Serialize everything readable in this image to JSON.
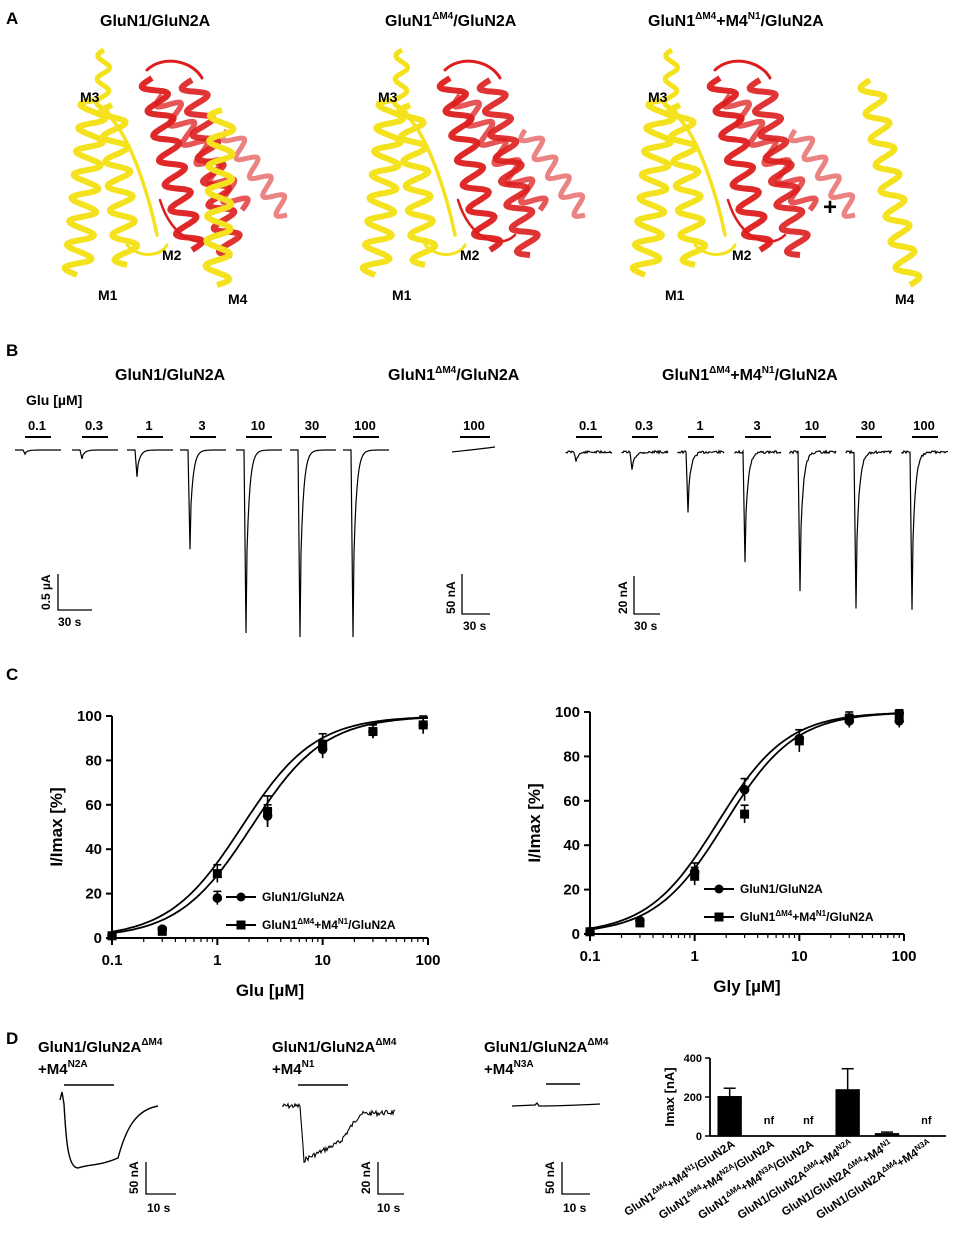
{
  "panelA": {
    "letter": "A",
    "titles": [
      {
        "main": "GluN1/GluN2A",
        "sup1": "",
        "mid": "",
        "sup2": "",
        "tail": ""
      },
      {
        "main": "GluN1",
        "sup1": "ΔM4",
        "mid": "/GluN2A",
        "sup2": "",
        "tail": ""
      },
      {
        "main": "GluN1",
        "sup1": "ΔM4",
        "mid": "+M4",
        "sup2": "N1",
        "tail": "/GluN2A"
      }
    ],
    "labels": {
      "m1": "M1",
      "m2": "M2",
      "m3": "M3",
      "m4": "M4",
      "plus": "+"
    },
    "colors": {
      "glun1": "#f4e21f",
      "glun2a": "#dd1e1e"
    }
  },
  "panelB": {
    "letter": "B",
    "titles": [
      {
        "main": "GluN1/GluN2A",
        "sup1": "",
        "mid": "",
        "sup2": "",
        "tail": ""
      },
      {
        "main": "GluN1",
        "sup1": "ΔM4",
        "mid": "/GluN2A",
        "sup2": "",
        "tail": ""
      },
      {
        "main": "GluN1",
        "sup1": "ΔM4",
        "mid": "+M4",
        "sup2": "N1",
        "tail": "/GluN2A"
      }
    ],
    "glu_label": "Glu [µM]",
    "wt_concs": [
      "0.1",
      "0.3",
      "1",
      "3",
      "10",
      "30",
      "100"
    ],
    "dm4_concs": [
      "100"
    ],
    "rescue_concs": [
      "0.1",
      "0.3",
      "1",
      "3",
      "10",
      "30",
      "100"
    ],
    "wt_peaks_uA": [
      0.05,
      0.11,
      0.33,
      1.22,
      2.25,
      2.3,
      2.3
    ],
    "rescue_peaks_nA": [
      4,
      8,
      26,
      48,
      60,
      68,
      69
    ],
    "scale1": {
      "y": "0.5 µA",
      "x": "30 s"
    },
    "scale2": {
      "y": "50 nA",
      "x": "30 s"
    },
    "scale3": {
      "y": "20 nA",
      "x": "30 s"
    }
  },
  "panelC": {
    "letter": "C",
    "legend": {
      "wt": "GluN1/GluN2A",
      "rescue_main": "GluN1",
      "rescue_sup1": "ΔM4",
      "rescue_mid": "+M4",
      "rescue_sup2": "N1",
      "rescue_tail": "/GluN2A"
    },
    "chart_data": [
      {
        "type": "scatter",
        "xlabel": "Glu [µM]",
        "ylabel": "I/Imax [%]",
        "xscale": "log",
        "xlim": [
          0.1,
          100
        ],
        "ylim": [
          0,
          100
        ],
        "xticks": [
          "0.1",
          "1",
          "10",
          "100"
        ],
        "yticks": [
          "0",
          "20",
          "40",
          "60",
          "80",
          "100"
        ],
        "legend_position": "bottom-right",
        "fits": [
          {
            "ec50": 1.7,
            "hill": 1.25
          },
          {
            "ec50": 2.1,
            "hill": 1.25
          }
        ],
        "series": [
          {
            "marker": "circle",
            "x": [
              0.1,
              0.3,
              1,
              3,
              10,
              30,
              90
            ],
            "y": [
              1,
              4,
              18,
              55,
              85,
              93,
              96
            ],
            "err": [
              1,
              1,
              3,
              5,
              4,
              3,
              3
            ]
          },
          {
            "marker": "square",
            "x": [
              0.1,
              0.3,
              1,
              3,
              10,
              30,
              90
            ],
            "y": [
              1,
              3,
              29,
              57,
              87,
              93,
              96
            ],
            "err": [
              1,
              1,
              4,
              7,
              5,
              3,
              4
            ]
          }
        ]
      },
      {
        "type": "scatter",
        "xlabel": "Gly [µM]",
        "ylabel": "I/Imax [%]",
        "xscale": "log",
        "xlim": [
          0.1,
          100
        ],
        "ylim": [
          0,
          100
        ],
        "xticks": [
          "0.1",
          "1",
          "10",
          "100"
        ],
        "yticks": [
          "0",
          "20",
          "40",
          "60",
          "80",
          "100"
        ],
        "legend_position": "bottom-right",
        "fits": [
          {
            "ec50": 1.65,
            "hill": 1.3
          },
          {
            "ec50": 1.95,
            "hill": 1.3
          }
        ],
        "series": [
          {
            "marker": "circle",
            "x": [
              0.1,
              0.3,
              1,
              3,
              10,
              30,
              90
            ],
            "y": [
              1,
              6,
              28,
              65,
              88,
              96,
              96
            ],
            "err": [
              1,
              1,
              4,
              5,
              4,
              3,
              3
            ]
          },
          {
            "marker": "square",
            "x": [
              0.1,
              0.3,
              1,
              3,
              10,
              30,
              90
            ],
            "y": [
              1,
              5,
              26,
              54,
              87,
              97,
              99
            ],
            "err": [
              1,
              1,
              4,
              4,
              5,
              3,
              2
            ]
          }
        ]
      }
    ]
  },
  "panelD": {
    "letter": "D",
    "traces": [
      {
        "main": "GluN1/GluN2A",
        "sup1": "ΔM4",
        "line2": "+M4",
        "sup2": "N2A",
        "scale_y": "50 nA",
        "scale_x": "10 s"
      },
      {
        "main": "GluN1/GluN2A",
        "sup1": "ΔM4",
        "line2": "+M4",
        "sup2": "N1",
        "scale_y": "20 nA",
        "scale_x": "10 s"
      },
      {
        "main": "GluN1/GluN2A",
        "sup1": "ΔM4",
        "line2": "+M4",
        "sup2": "N3A",
        "scale_y": "50 nA",
        "scale_x": "10 s"
      }
    ],
    "chart_data": {
      "type": "bar",
      "ylabel": "Imax [nA]",
      "ylim": [
        0,
        400
      ],
      "yticks": [
        "0",
        "200",
        "400"
      ],
      "nf_label": "nf",
      "categories": [
        {
          "a": "GluN1",
          "b": "ΔM4",
          "c": "+M4",
          "d": "N1",
          "e": "/GluN2A"
        },
        {
          "a": "GluN1",
          "b": "ΔM4",
          "c": "+M4",
          "d": "N2A",
          "e": "/GluN2A"
        },
        {
          "a": "GluN1",
          "b": "ΔM4",
          "c": "+M4",
          "d": "N3A",
          "e": "/GluN2A"
        },
        {
          "a": "GluN1/GluN2A",
          "b": "ΔM4",
          "c": "+M4",
          "d": "N2A",
          "e": ""
        },
        {
          "a": "GluN1/GluN2A",
          "b": "ΔM4",
          "c": "+M4",
          "d": "N1",
          "e": ""
        },
        {
          "a": "GluN1/GluN2A",
          "b": "ΔM4",
          "c": "+M4",
          "d": "N3A",
          "e": ""
        }
      ],
      "values": [
        205,
        0,
        0,
        240,
        15,
        0
      ],
      "errors": [
        40,
        0,
        0,
        105,
        5,
        0
      ],
      "nf": [
        false,
        true,
        true,
        false,
        false,
        true
      ]
    }
  }
}
